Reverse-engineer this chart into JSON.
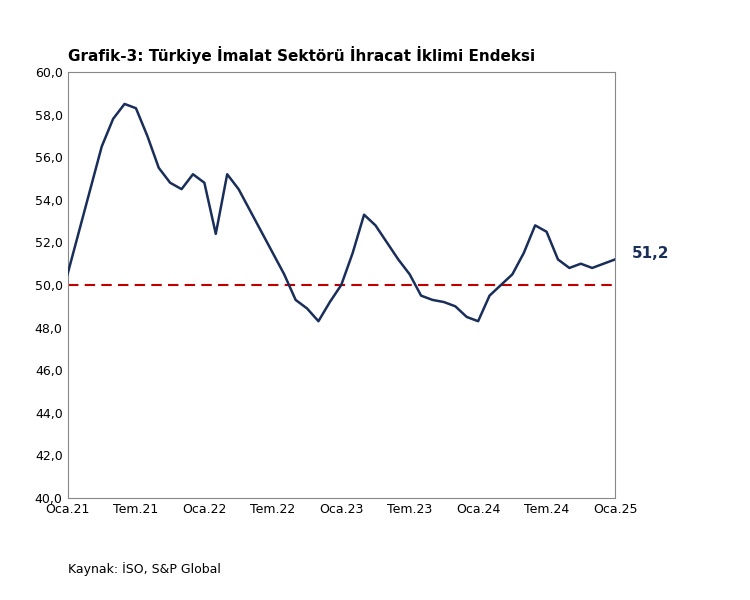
{
  "title": "Grafik-3: Türkiye İmalat Sektörü İhracat İklimi Endeksi",
  "source": "Kaynak: İSO, S&P Global",
  "line_color": "#1a2e5a",
  "dashed_line_color": "#c00000",
  "dashed_line_value": 50.0,
  "annotation_text": "51,2",
  "ylim": [
    40.0,
    60.0
  ],
  "yticks": [
    40.0,
    42.0,
    44.0,
    46.0,
    48.0,
    50.0,
    52.0,
    54.0,
    56.0,
    58.0,
    60.0
  ],
  "xtick_labels": [
    "Oca.21",
    "Tem.21",
    "Oca.22",
    "Tem.22",
    "Oca.23",
    "Tem.23",
    "Oca.24",
    "Tem.24",
    "Oca.25"
  ],
  "x_values": [
    0,
    1,
    2,
    3,
    4,
    5,
    6,
    7,
    8,
    9,
    10,
    11,
    12,
    13,
    14,
    15,
    16,
    17,
    18,
    19,
    20,
    21,
    22,
    23,
    24,
    25,
    26,
    27,
    28,
    29,
    30,
    31,
    32,
    33,
    34,
    35,
    36,
    37,
    38,
    39,
    40,
    41,
    42,
    43,
    44,
    45,
    46,
    47,
    48
  ],
  "y_values": [
    50.5,
    52.5,
    54.5,
    56.5,
    57.8,
    58.5,
    58.3,
    57.0,
    55.5,
    54.8,
    54.5,
    55.2,
    54.8,
    52.4,
    55.2,
    54.5,
    53.5,
    52.5,
    51.5,
    50.5,
    49.3,
    48.9,
    48.3,
    49.2,
    50.0,
    51.5,
    53.3,
    52.8,
    52.0,
    51.2,
    50.5,
    49.5,
    49.3,
    49.2,
    49.0,
    48.5,
    48.3,
    49.5,
    50.0,
    50.5,
    51.5,
    52.8,
    52.5,
    51.2,
    50.8,
    51.0,
    50.8,
    51.0,
    51.2
  ],
  "xtick_positions": [
    0,
    6,
    12,
    18,
    24,
    30,
    36,
    42,
    48
  ],
  "background_color": "#ffffff",
  "line_width": 1.8,
  "title_fontsize": 11,
  "axis_fontsize": 9,
  "annotation_fontsize": 11
}
